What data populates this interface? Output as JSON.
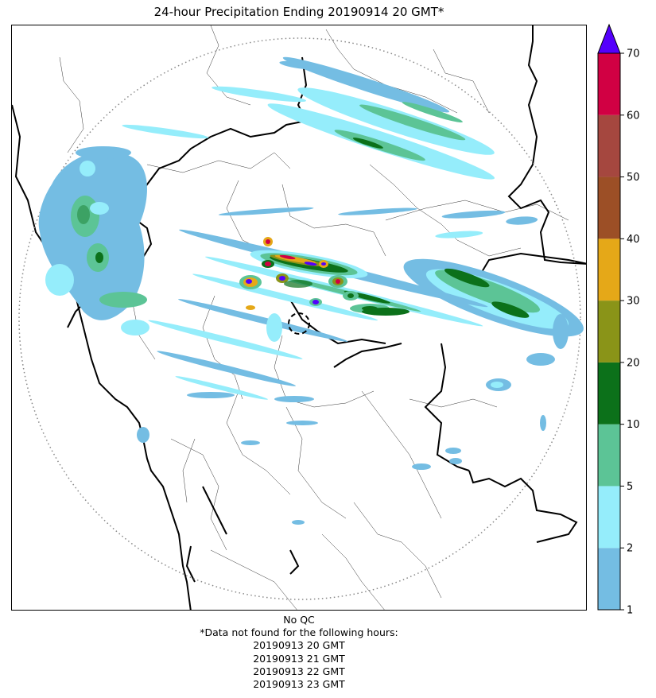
{
  "title": "24-hour Precipitation Ending 20190914 20 GMT*",
  "colorbar": {
    "ticks": [
      "1",
      "2",
      "5",
      "10",
      "20",
      "30",
      "40",
      "50",
      "60",
      "70"
    ],
    "colors": [
      "#74bde3",
      "#95edfb",
      "#5cc496",
      "#0c711a",
      "#8a9418",
      "#e5a818",
      "#9c4f26",
      "#a5473f",
      "#d10043"
    ],
    "overflow_color": "#5400fc"
  },
  "map": {
    "range_ring_color": "#888888",
    "radar_site_marker": "dashed-circle"
  },
  "footer": {
    "qc_note": "No QC",
    "missing_note": "*Data not found for the following hours:",
    "missing_hours": [
      "20190913 20 GMT",
      "20190913 21 GMT",
      "20190913 22 GMT",
      "20190913 23 GMT"
    ]
  }
}
